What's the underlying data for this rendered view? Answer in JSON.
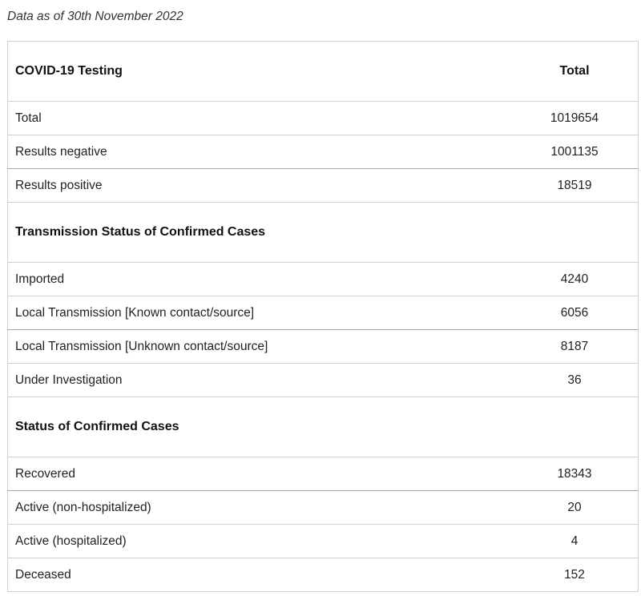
{
  "caption": "Data as of 30th November 2022",
  "header": {
    "label": "COVID-19 Testing",
    "value_header": "Total"
  },
  "testing": [
    {
      "label": "Total",
      "value": "1019654"
    },
    {
      "label": "Results negative",
      "value": "1001135"
    },
    {
      "label": "Results positive",
      "value": "18519"
    }
  ],
  "transmission": {
    "title": "Transmission Status of Confirmed Cases",
    "rows": [
      {
        "label": "Imported",
        "value": "4240"
      },
      {
        "label": "Local Transmission [Known contact/source]",
        "value": "6056"
      },
      {
        "label": "Local Transmission [Unknown contact/source]",
        "value": "8187"
      },
      {
        "label": "Under Investigation",
        "value": "36"
      }
    ]
  },
  "status": {
    "title": "Status of Confirmed Cases",
    "rows": [
      {
        "label": "Recovered",
        "value": "18343"
      },
      {
        "label": "Active (non-hospitalized)",
        "value": "20"
      },
      {
        "label": "Active (hospitalized)",
        "value": "4"
      },
      {
        "label": "Deceased",
        "value": "152"
      }
    ]
  }
}
